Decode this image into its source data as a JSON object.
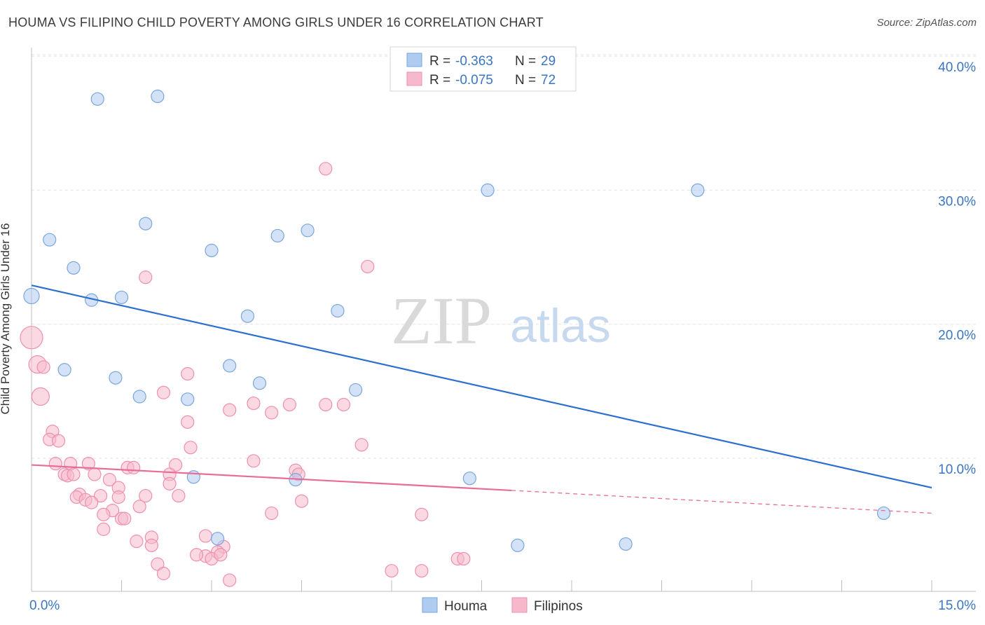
{
  "title": "HOUMA VS FILIPINO CHILD POVERTY AMONG GIRLS UNDER 16 CORRELATION CHART",
  "source": "Source: ZipAtlas.com",
  "watermark": {
    "zip": "ZIP",
    "atlas": "atlas"
  },
  "legend_top": {
    "rows": [
      {
        "r_label": "R =",
        "r_value": "-0.363",
        "n_label": "N =",
        "n_value": "29",
        "color": "#aecbf0"
      },
      {
        "r_label": "R =",
        "r_value": "-0.075",
        "n_label": "N =",
        "n_value": "72",
        "color": "#f6b9cc"
      }
    ]
  },
  "legend_bottom": {
    "items": [
      "Houma",
      "Filipinos"
    ]
  },
  "colors": {
    "houma_fill": "#aecbf0",
    "houma_stroke": "#7aa6dc",
    "houma_line": "#2d6fcf",
    "filipinos_fill": "#f6b9cc",
    "filipinos_stroke": "#ee8fae",
    "filipinos_line": "#e96c98",
    "value_text": "#3a75c4"
  },
  "chart_data": {
    "type": "scatter",
    "title": "HOUMA VS FILIPINO CHILD POVERTY AMONG GIRLS UNDER 16 CORRELATION CHART",
    "xlabel": "",
    "ylabel": "Child Poverty Among Girls Under 16",
    "xlim": [
      0,
      15
    ],
    "ylim": [
      0,
      42
    ],
    "x_tick_labels": [
      "0.0%",
      "15.0%"
    ],
    "y_ticks": [
      10,
      20,
      30,
      40
    ],
    "y_tick_labels": [
      "10.0%",
      "20.0%",
      "30.0%",
      "40.0%"
    ],
    "grid": true,
    "series": [
      {
        "name": "Houma",
        "points": [
          [
            1.1,
            36.8
          ],
          [
            2.1,
            37.0
          ],
          [
            0.3,
            26.3
          ],
          [
            1.9,
            27.5
          ],
          [
            0.7,
            24.2
          ],
          [
            3.0,
            25.5
          ],
          [
            4.1,
            26.6
          ],
          [
            4.6,
            27.0
          ],
          [
            7.6,
            30.0
          ],
          [
            11.1,
            30.0
          ],
          [
            0.0,
            22.1
          ],
          [
            1.0,
            21.8
          ],
          [
            1.5,
            22.0
          ],
          [
            3.6,
            20.6
          ],
          [
            5.1,
            21.0
          ],
          [
            0.55,
            16.6
          ],
          [
            1.4,
            16.0
          ],
          [
            3.3,
            16.9
          ],
          [
            3.8,
            15.6
          ],
          [
            5.4,
            15.1
          ],
          [
            1.8,
            14.6
          ],
          [
            2.6,
            14.4
          ],
          [
            2.7,
            8.6
          ],
          [
            4.4,
            8.4
          ],
          [
            7.3,
            8.5
          ],
          [
            3.1,
            4.0
          ],
          [
            8.1,
            3.5
          ],
          [
            9.9,
            3.6
          ],
          [
            14.2,
            5.9
          ]
        ]
      },
      {
        "name": "Filipinos",
        "points": [
          [
            0.0,
            19.0
          ],
          [
            0.1,
            17.0
          ],
          [
            0.15,
            14.6
          ],
          [
            4.9,
            31.6
          ],
          [
            5.6,
            24.3
          ],
          [
            1.9,
            23.5
          ],
          [
            2.6,
            16.3
          ],
          [
            2.2,
            14.9
          ],
          [
            3.7,
            14.1
          ],
          [
            4.3,
            14.0
          ],
          [
            4.9,
            14.0
          ],
          [
            5.2,
            14.0
          ],
          [
            3.3,
            13.6
          ],
          [
            4.0,
            13.4
          ],
          [
            2.6,
            12.7
          ],
          [
            0.35,
            12.0
          ],
          [
            0.3,
            11.4
          ],
          [
            0.45,
            11.3
          ],
          [
            5.5,
            11.0
          ],
          [
            2.65,
            10.8
          ],
          [
            3.7,
            9.8
          ],
          [
            0.4,
            9.6
          ],
          [
            0.65,
            9.6
          ],
          [
            0.95,
            9.6
          ],
          [
            1.6,
            9.3
          ],
          [
            1.7,
            9.3
          ],
          [
            2.4,
            9.5
          ],
          [
            4.4,
            9.1
          ],
          [
            4.45,
            8.8
          ],
          [
            0.55,
            8.8
          ],
          [
            0.6,
            8.7
          ],
          [
            0.7,
            8.8
          ],
          [
            1.05,
            8.8
          ],
          [
            1.3,
            8.4
          ],
          [
            2.3,
            8.8
          ],
          [
            1.45,
            7.8
          ],
          [
            2.3,
            8.1
          ],
          [
            0.8,
            7.3
          ],
          [
            1.15,
            7.2
          ],
          [
            0.75,
            7.1
          ],
          [
            0.9,
            6.9
          ],
          [
            1.0,
            6.7
          ],
          [
            1.45,
            7.1
          ],
          [
            1.9,
            7.2
          ],
          [
            2.45,
            7.2
          ],
          [
            4.5,
            6.8
          ],
          [
            1.35,
            6.1
          ],
          [
            1.8,
            6.4
          ],
          [
            1.2,
            5.8
          ],
          [
            1.5,
            5.5
          ],
          [
            1.55,
            5.5
          ],
          [
            4.0,
            5.9
          ],
          [
            6.5,
            5.8
          ],
          [
            1.2,
            4.7
          ],
          [
            2.0,
            4.1
          ],
          [
            1.75,
            3.8
          ],
          [
            2.0,
            3.5
          ],
          [
            2.9,
            4.2
          ],
          [
            3.2,
            3.4
          ],
          [
            3.1,
            3.0
          ],
          [
            2.9,
            2.7
          ],
          [
            3.0,
            2.5
          ],
          [
            3.15,
            2.8
          ],
          [
            2.75,
            2.8
          ],
          [
            2.1,
            2.1
          ],
          [
            2.2,
            1.4
          ],
          [
            3.3,
            0.9
          ],
          [
            6.0,
            1.6
          ],
          [
            6.5,
            1.6
          ],
          [
            7.1,
            2.5
          ],
          [
            7.2,
            2.5
          ],
          [
            0.2,
            16.8
          ]
        ]
      }
    ],
    "trend_lines": [
      {
        "series": "Houma",
        "x": [
          0,
          15
        ],
        "y": [
          22.9,
          7.8
        ],
        "style": "solid"
      },
      {
        "series": "Filipinos",
        "x": [
          0,
          8.0
        ],
        "y": [
          9.5,
          7.6
        ],
        "style": "solid"
      },
      {
        "series": "Filipinos",
        "x": [
          8.0,
          15
        ],
        "y": [
          7.6,
          5.9
        ],
        "style": "dashed"
      }
    ]
  }
}
